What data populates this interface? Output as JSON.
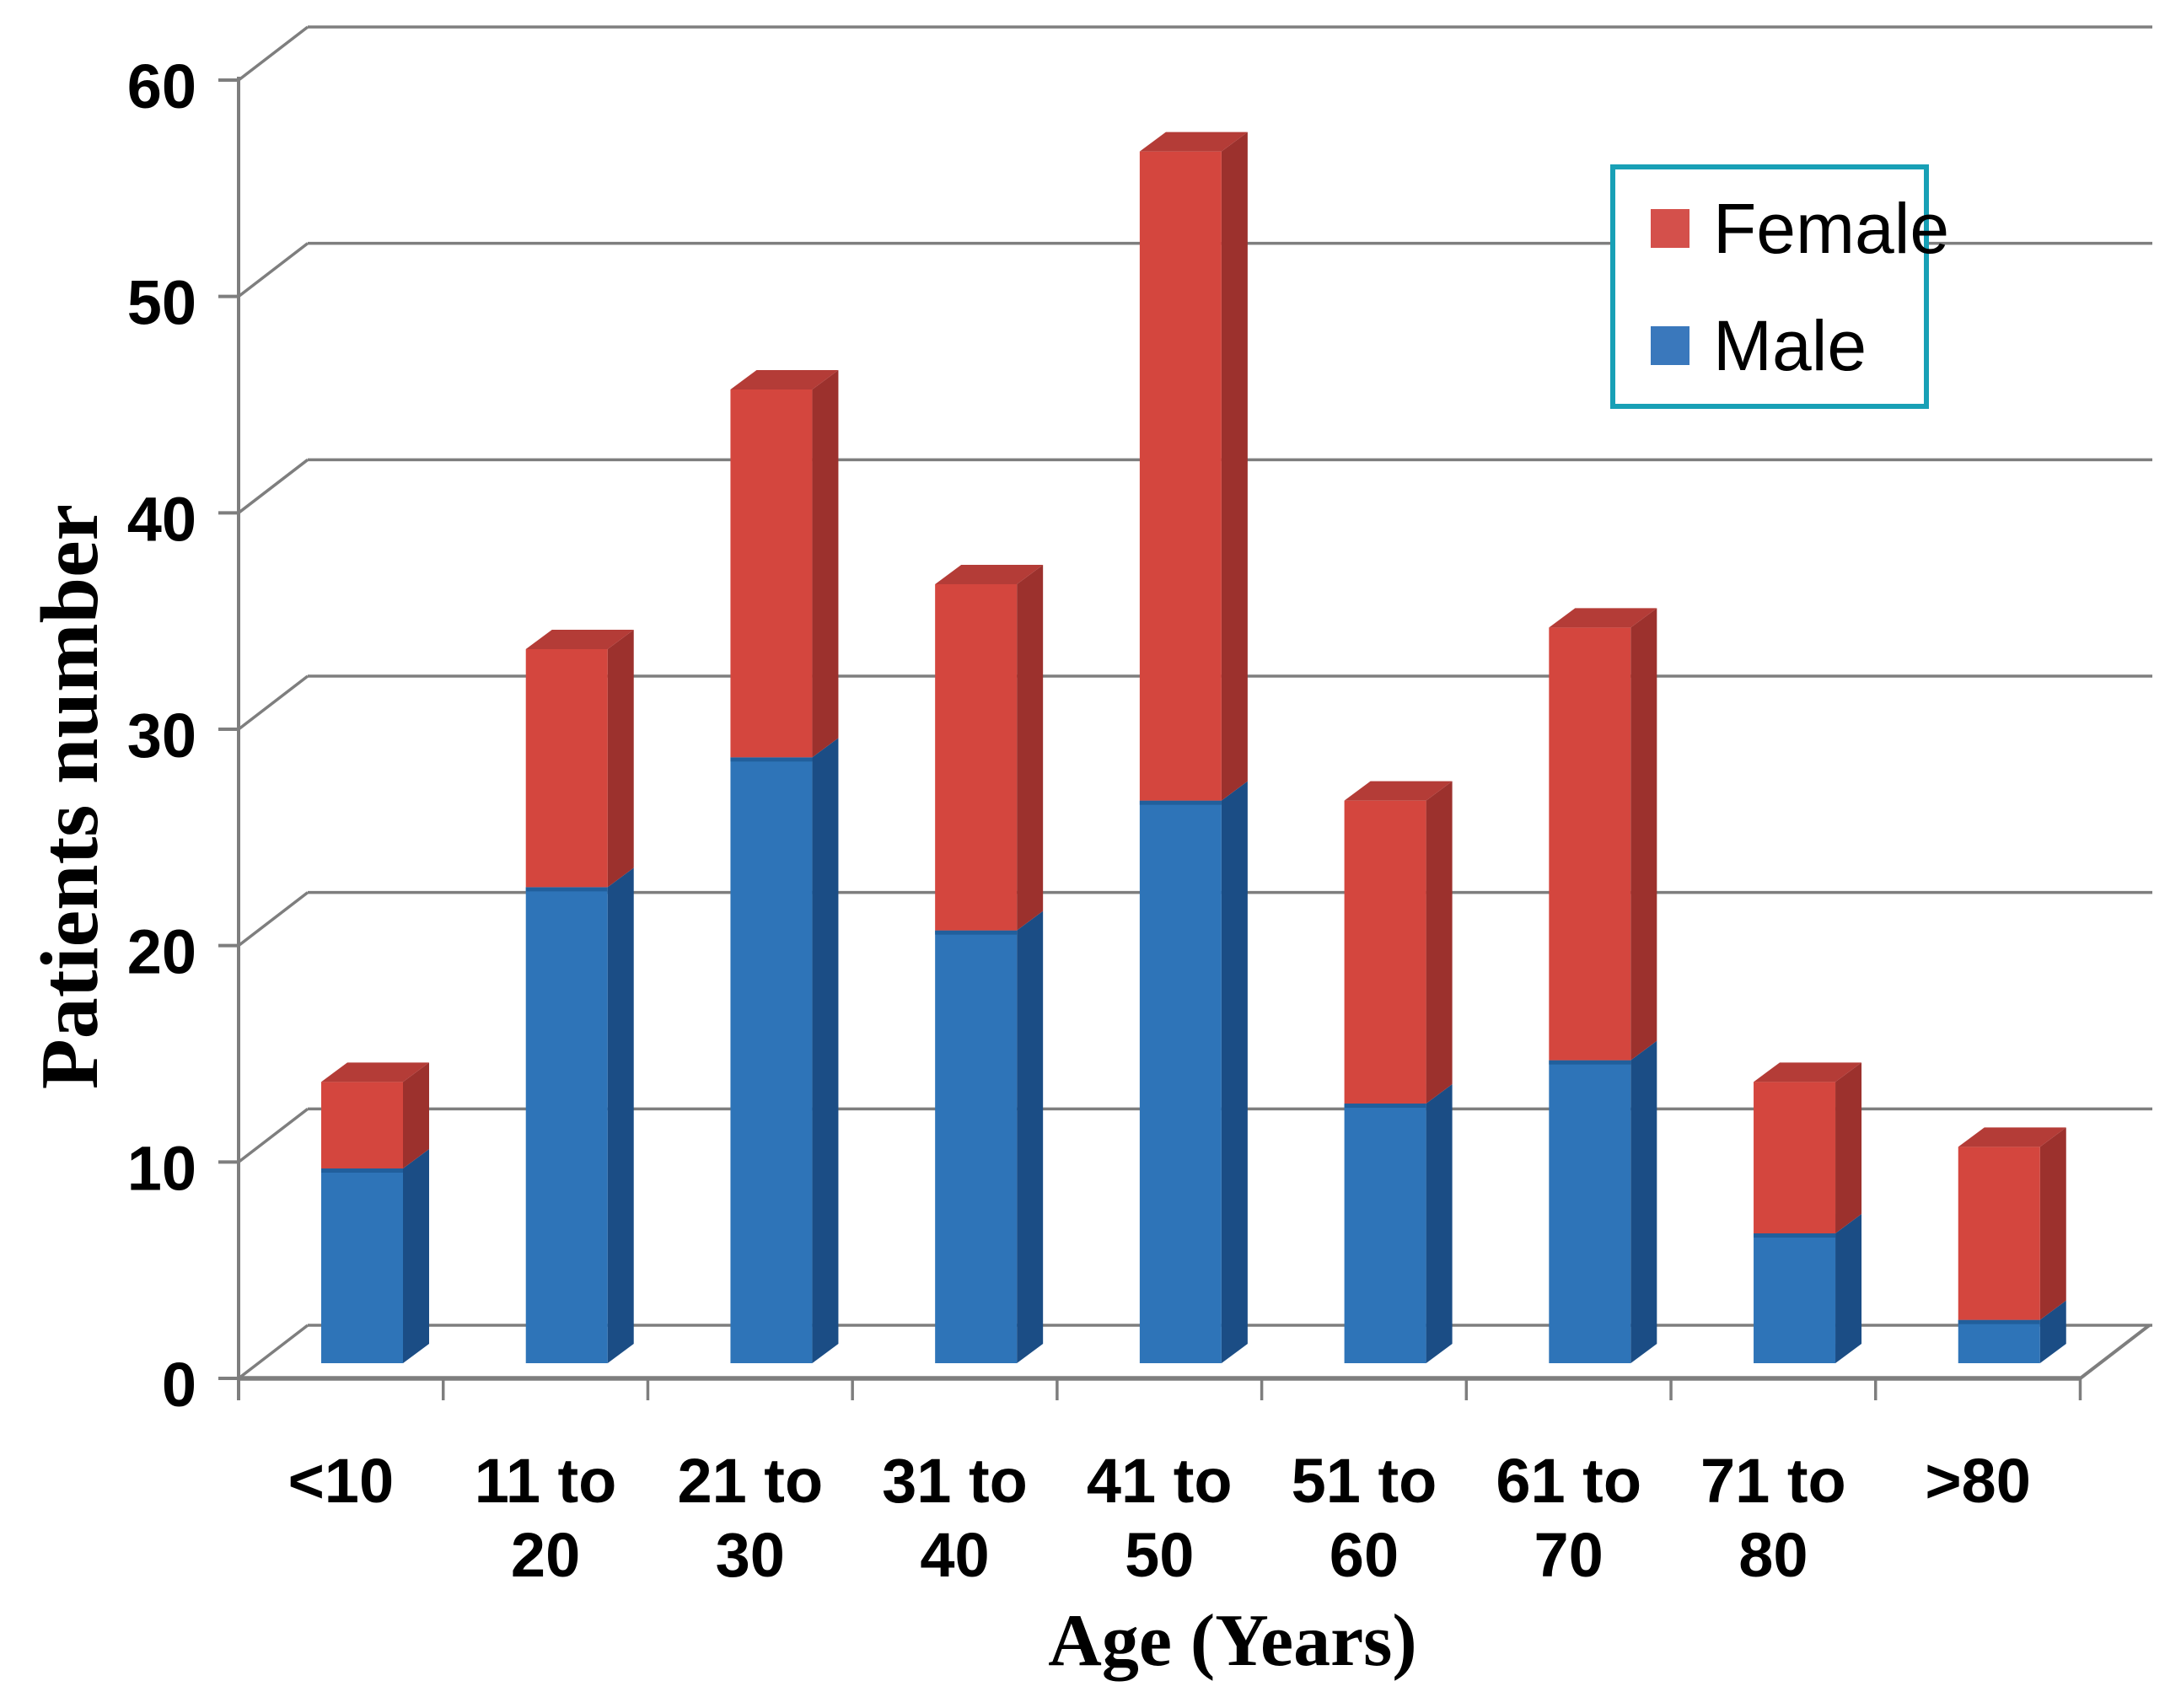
{
  "chart_data": {
    "type": "bar",
    "stacked": true,
    "projection": "3d",
    "xlabel": "Age (Years)",
    "ylabel": "Patients number",
    "categories": [
      "<10",
      "11 to 20",
      "21 to 30",
      "31 to 40",
      "41 to 50",
      "51 to 60",
      "61 to 70",
      "71 to 80",
      ">80"
    ],
    "cat_lines": [
      [
        "<10"
      ],
      [
        "11 to",
        "20"
      ],
      [
        "21 to",
        "30"
      ],
      [
        "31 to",
        "40"
      ],
      [
        "41 to",
        "50"
      ],
      [
        "51 to",
        "60"
      ],
      [
        "61 to",
        "70"
      ],
      [
        "71 to",
        "80"
      ],
      [
        ">80"
      ]
    ],
    "series": [
      {
        "name": "Male",
        "values": [
          9,
          22,
          28,
          20,
          26,
          12,
          14,
          6,
          2
        ],
        "color": "#2E74B8",
        "side_color": "#1B4D85",
        "edge_color": "#1E5C97"
      },
      {
        "name": "Female",
        "values": [
          4,
          11,
          17,
          16,
          30,
          14,
          20,
          7,
          8
        ],
        "color": "#D4463E",
        "side_color": "#9C312D",
        "top_color": "#B43C37"
      }
    ],
    "totals": [
      13,
      33,
      45,
      36,
      56,
      26,
      34,
      13,
      10
    ],
    "ylim": [
      0,
      60
    ],
    "ytick_step": 10,
    "yticks": [
      "0",
      "10",
      "20",
      "30",
      "40",
      "50",
      "60"
    ],
    "grid": true,
    "legend_position": "top-right"
  },
  "legend": {
    "border_color": "#18A0B6",
    "items": [
      {
        "label": "Female",
        "color": "#D4504B"
      },
      {
        "label": "Male",
        "color": "#3A78BC"
      }
    ]
  },
  "colors": {
    "background": "#FFFFFF",
    "gridline": "#7E7E7E",
    "axis": "#7E7E7E"
  }
}
